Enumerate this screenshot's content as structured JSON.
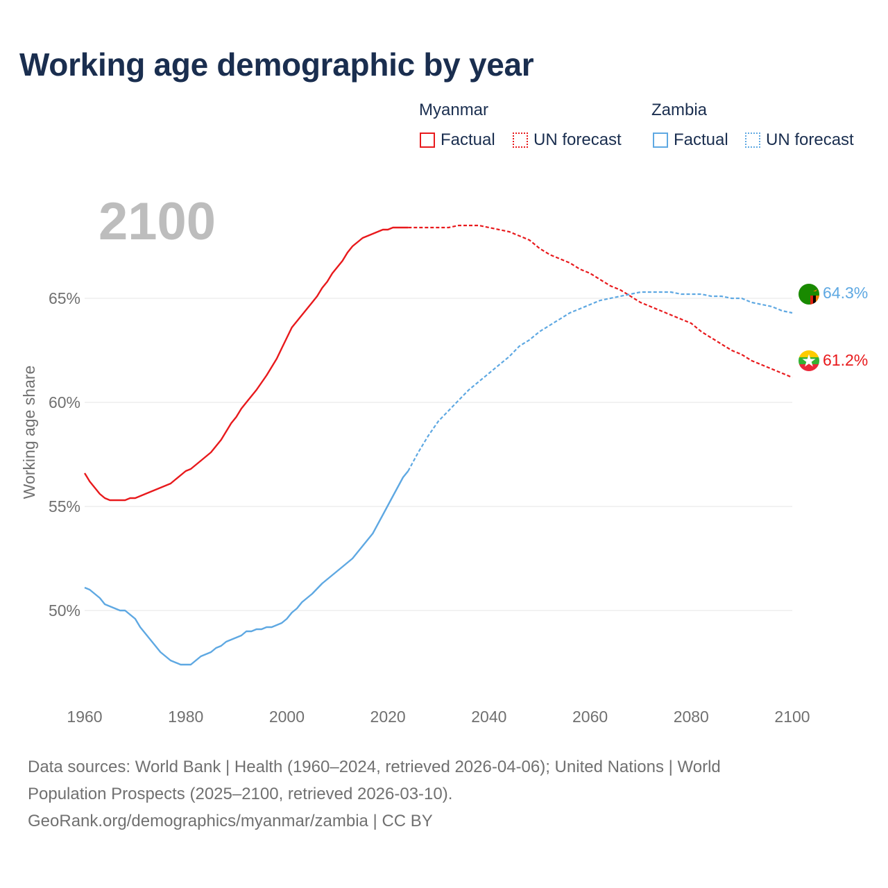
{
  "title": "Working age demographic by year",
  "legend": {
    "groups": [
      {
        "name": "Myanmar",
        "factual_label": "Factual",
        "forecast_label": "UN forecast",
        "color": "#e8191c"
      },
      {
        "name": "Zambia",
        "factual_label": "Factual",
        "forecast_label": "UN forecast",
        "color": "#5ea8e2"
      }
    ]
  },
  "year_display": "2100",
  "footer": {
    "line1": "Data sources: World Bank | Health (1960–2024, retrieved 2026-04-06); United Nations | World",
    "line2": "Population Prospects (2025–2100, retrieved 2026-03-10).",
    "line3": "GeoRank.org/demographics/myanmar/zambia | CC BY"
  },
  "chart_data": {
    "type": "line",
    "title": "Working age demographic by year",
    "xlabel": "",
    "ylabel": "Working age share",
    "xlim": [
      1960,
      2100
    ],
    "ylim": [
      46,
      71
    ],
    "x_ticks": [
      1960,
      1980,
      2000,
      2020,
      2040,
      2060,
      2080,
      2100
    ],
    "x_tick_labels": [
      "1960",
      "1980",
      "2000",
      "2020",
      "2040",
      "2060",
      "2080",
      "2100"
    ],
    "y_ticks": [
      50,
      55,
      60,
      65
    ],
    "y_tick_labels": [
      "50%",
      "55%",
      "60%",
      "65%"
    ],
    "grid": true,
    "factual_end_year": 2024,
    "series": [
      {
        "name": "Myanmar",
        "color": "#e8191c",
        "end_label": "61.2%",
        "x": [
          1960,
          1961,
          1963,
          1964,
          1965,
          1966,
          1968,
          1969,
          1970,
          1972,
          1974,
          1976,
          1977,
          1978,
          1980,
          1981,
          1983,
          1985,
          1987,
          1989,
          1990,
          1991,
          1992,
          1994,
          1996,
          1998,
          1999,
          2000,
          2001,
          2003,
          2005,
          2006,
          2007,
          2008,
          2009,
          2010,
          2011,
          2012,
          2013,
          2014,
          2015,
          2016,
          2017,
          2018,
          2019,
          2020,
          2021,
          2022,
          2024,
          2026,
          2028,
          2030,
          2032,
          2034,
          2036,
          2038,
          2040,
          2042,
          2044,
          2046,
          2048,
          2050,
          2052,
          2054,
          2056,
          2058,
          2060,
          2062,
          2064,
          2066,
          2068,
          2070,
          2072,
          2074,
          2076,
          2078,
          2080,
          2082,
          2084,
          2086,
          2088,
          2090,
          2092,
          2094,
          2096,
          2098,
          2100
        ],
        "values": [
          56.6,
          56.2,
          55.6,
          55.4,
          55.3,
          55.3,
          55.3,
          55.4,
          55.4,
          55.6,
          55.8,
          56.0,
          56.1,
          56.3,
          56.7,
          56.8,
          57.2,
          57.6,
          58.2,
          59.0,
          59.3,
          59.7,
          60.0,
          60.6,
          61.3,
          62.1,
          62.6,
          63.1,
          63.6,
          64.2,
          64.8,
          65.1,
          65.5,
          65.8,
          66.2,
          66.5,
          66.8,
          67.2,
          67.5,
          67.7,
          67.9,
          68.0,
          68.1,
          68.2,
          68.3,
          68.3,
          68.4,
          68.4,
          68.4,
          68.4,
          68.4,
          68.4,
          68.4,
          68.5,
          68.5,
          68.5,
          68.4,
          68.3,
          68.2,
          68.0,
          67.8,
          67.4,
          67.1,
          66.9,
          66.7,
          66.4,
          66.2,
          65.9,
          65.6,
          65.4,
          65.1,
          64.8,
          64.6,
          64.4,
          64.2,
          64.0,
          63.8,
          63.4,
          63.1,
          62.8,
          62.5,
          62.3,
          62.0,
          61.8,
          61.6,
          61.4,
          61.2
        ]
      },
      {
        "name": "Zambia",
        "color": "#5ea8e2",
        "end_label": "64.3%",
        "x": [
          1960,
          1961,
          1963,
          1964,
          1966,
          1967,
          1968,
          1970,
          1971,
          1973,
          1975,
          1977,
          1979,
          1980,
          1981,
          1983,
          1985,
          1986,
          1987,
          1988,
          1990,
          1991,
          1992,
          1993,
          1994,
          1995,
          1996,
          1997,
          1998,
          1999,
          2000,
          2001,
          2002,
          2003,
          2005,
          2007,
          2009,
          2011,
          2013,
          2015,
          2017,
          2019,
          2021,
          2023,
          2024,
          2026,
          2028,
          2030,
          2032,
          2034,
          2036,
          2038,
          2040,
          2042,
          2044,
          2046,
          2048,
          2050,
          2052,
          2054,
          2056,
          2058,
          2060,
          2062,
          2064,
          2066,
          2068,
          2070,
          2072,
          2074,
          2076,
          2078,
          2080,
          2082,
          2084,
          2086,
          2088,
          2090,
          2092,
          2094,
          2096,
          2098,
          2100
        ],
        "values": [
          51.1,
          51.0,
          50.6,
          50.3,
          50.1,
          50.0,
          50.0,
          49.6,
          49.2,
          48.6,
          48.0,
          47.6,
          47.4,
          47.4,
          47.4,
          47.8,
          48.0,
          48.2,
          48.3,
          48.5,
          48.7,
          48.8,
          49.0,
          49.0,
          49.1,
          49.1,
          49.2,
          49.2,
          49.3,
          49.4,
          49.6,
          49.9,
          50.1,
          50.4,
          50.8,
          51.3,
          51.7,
          52.1,
          52.5,
          53.1,
          53.7,
          54.6,
          55.5,
          56.4,
          56.7,
          57.6,
          58.4,
          59.1,
          59.6,
          60.1,
          60.6,
          61.0,
          61.4,
          61.8,
          62.2,
          62.7,
          63.0,
          63.4,
          63.7,
          64.0,
          64.3,
          64.5,
          64.7,
          64.9,
          65.0,
          65.1,
          65.2,
          65.3,
          65.3,
          65.3,
          65.3,
          65.2,
          65.2,
          65.2,
          65.1,
          65.1,
          65.0,
          65.0,
          64.8,
          64.7,
          64.6,
          64.4,
          64.3
        ]
      }
    ]
  }
}
